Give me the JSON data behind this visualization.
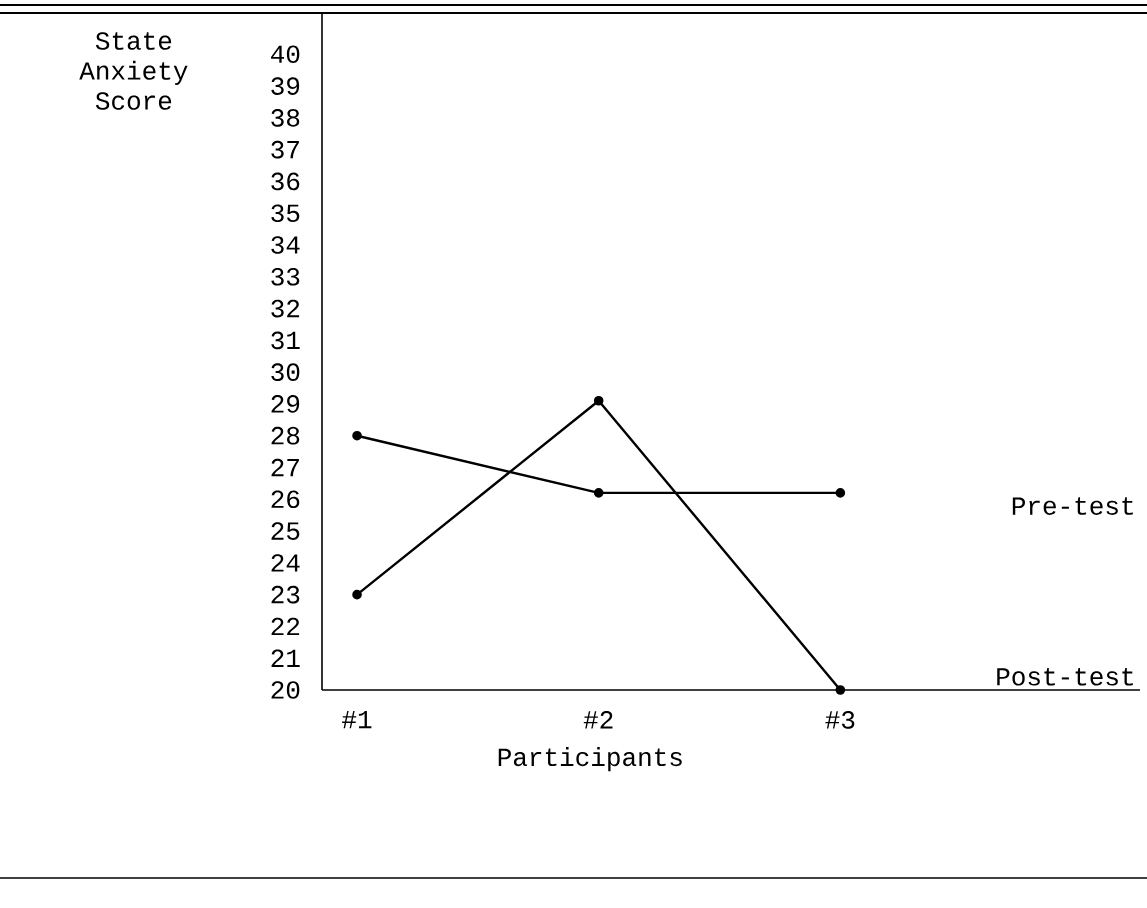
{
  "chart_data": {
    "type": "line",
    "xlabel": "Participants",
    "ylabel": "State Anxiety Score",
    "categories": [
      "#1",
      "#2",
      "#3"
    ],
    "series": [
      {
        "name": "Pre-test",
        "color": "#000000",
        "values": [
          28,
          26.2,
          26.2
        ]
      },
      {
        "name": "Post-test",
        "color": "#000000",
        "values": [
          23,
          29.1,
          20
        ]
      }
    ],
    "ylim": [
      20,
      41.3
    ],
    "yticks": [
      20,
      21,
      22,
      23,
      24,
      25,
      26,
      27,
      28,
      29,
      30,
      31,
      32,
      33,
      34,
      35,
      36,
      37,
      38,
      39,
      40
    ],
    "marker": "circle",
    "line_style": "solid",
    "legend": false
  }
}
